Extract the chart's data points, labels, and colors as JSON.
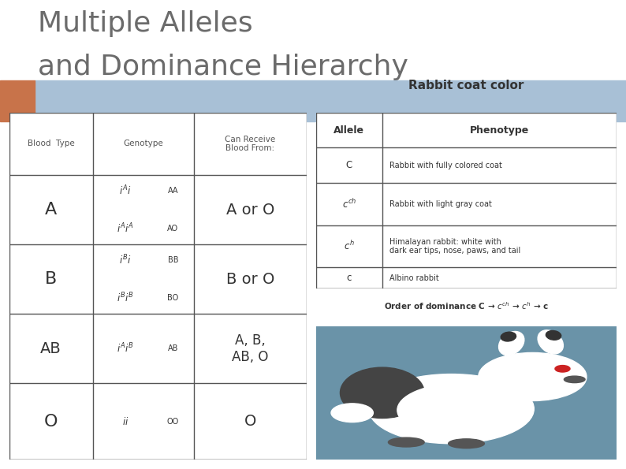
{
  "title_line1": "Multiple Alleles",
  "title_line2": "and Dominance Hierarchy",
  "title_color": "#6b6b6b",
  "title_fontsize": 26,
  "accent_bar_color": "#c8734a",
  "blue_bar_color": "#a8c0d6",
  "bg_color": "#ffffff",
  "left_table": {
    "headers": [
      "Blood  Type",
      "Genotype",
      "Can Receive\nBlood From:"
    ],
    "rows": [
      {
        "blood_type": "A",
        "genotype_main": "$i^{A}i$",
        "genotype_alt": "$i^{A}i^{A}$",
        "alt_labels": [
          "AA",
          "AO"
        ],
        "receive": "A or O"
      },
      {
        "blood_type": "B",
        "genotype_main": "$i^{B}i$",
        "genotype_alt": "$i^{B}i^{B}$",
        "alt_labels": [
          "BB",
          "BO"
        ],
        "receive": "B or O"
      },
      {
        "blood_type": "AB",
        "genotype_main": "$i^{A}i^{B}$",
        "genotype_alt": "",
        "alt_labels": [
          "AB"
        ],
        "receive": "A, B,\nAB, O"
      },
      {
        "blood_type": "O",
        "genotype_main": "$ii$",
        "genotype_alt": "",
        "alt_labels": [
          "OO"
        ],
        "receive": "O"
      }
    ]
  },
  "right_table": {
    "title": "Rabbit coat color",
    "headers": [
      "Allele",
      "Phenotype"
    ],
    "rows": [
      [
        "C",
        "Rabbit with fully colored coat"
      ],
      [
        "$c^{ch}$",
        "Rabbit with light gray coat"
      ],
      [
        "$c^{h}$",
        "Himalayan rabbit: white with\ndark ear tips, nose, paws, and tail"
      ],
      [
        "c",
        "Albino rabbit"
      ]
    ],
    "dominance": "Order of dominance C → $c^{ch}$ → $c^{h}$ → c"
  },
  "table_border_color": "#555555",
  "table_text_color": "#333333",
  "header_text_color": "#555555",
  "rabbit_bg_color": "#7a9fb0"
}
